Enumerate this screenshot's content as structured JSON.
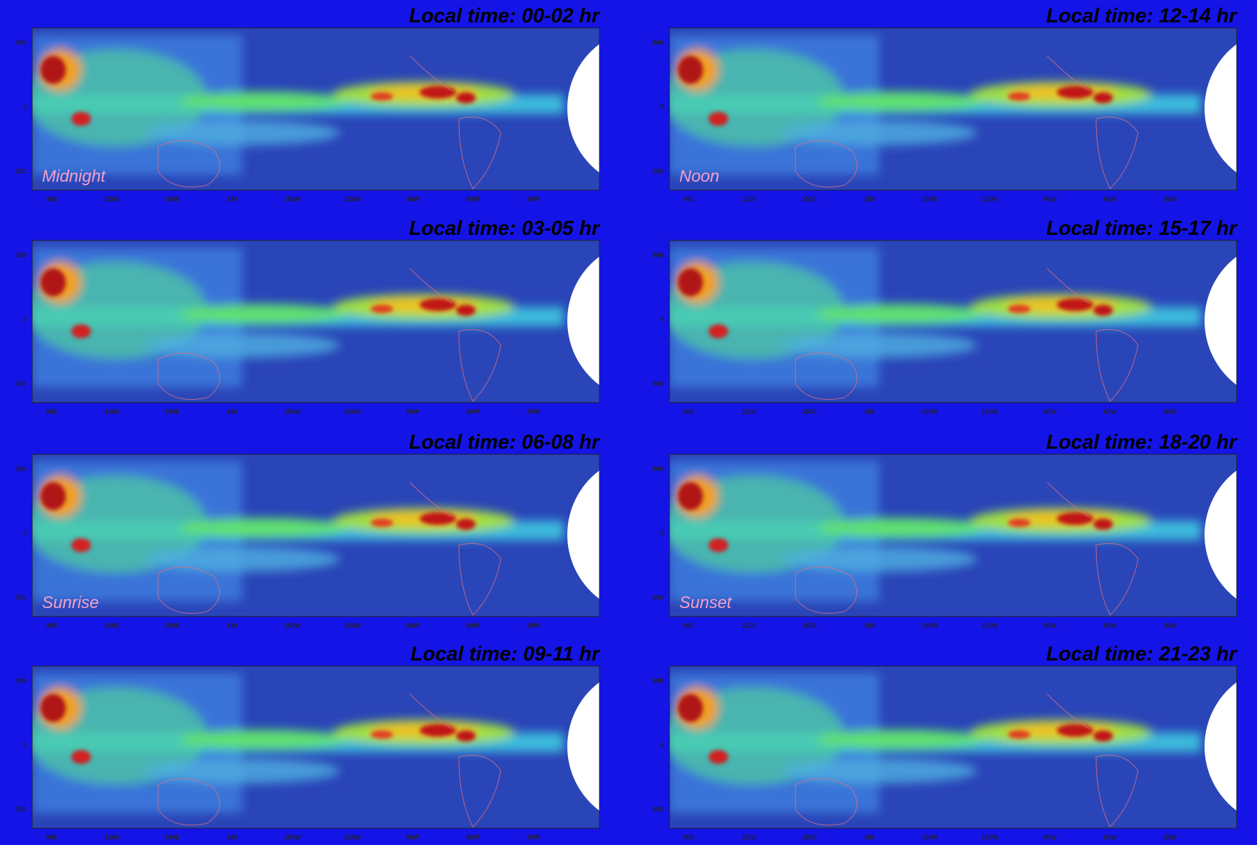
{
  "panels": [
    {
      "title": "Local time: 00-02 hr",
      "label": "Midnight"
    },
    {
      "title": "Local time: 03-05 hr"
    },
    {
      "title": "Local time: 06-08 hr",
      "label": "Sunrise"
    },
    {
      "title": "Local time: 09-11 hr"
    },
    {
      "title": "Local time: 12-14 hr",
      "label": "Noon"
    },
    {
      "title": "Local time: 15-17 hr"
    },
    {
      "title": "Local time: 18-20 hr",
      "label": "Sunset"
    },
    {
      "title": "Local time: 21-23 hr"
    }
  ],
  "lat_labels": [
    "30N",
    "0",
    "30S"
  ],
  "lon_labels": [
    "90E",
    "120E",
    "150E",
    "180",
    "150W",
    "120W",
    "90W",
    "60W",
    "30W"
  ]
}
